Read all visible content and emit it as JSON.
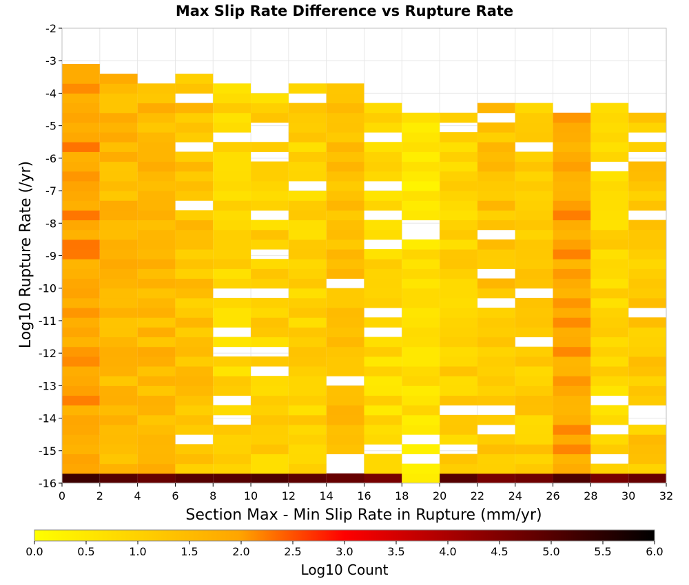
{
  "chart_data": {
    "type": "heatmap",
    "title": "Max Slip Rate Difference vs Rupture Rate",
    "xlabel": "Section Max - Min Slip Rate in Rupture (mm/yr)",
    "ylabel": "Log10 Rupture Rate (/yr)",
    "xlim": [
      0,
      32
    ],
    "ylim": [
      -16,
      -2
    ],
    "x_ticks": [
      "0",
      "2",
      "4",
      "6",
      "8",
      "10",
      "12",
      "14",
      "16",
      "18",
      "20",
      "22",
      "24",
      "26",
      "28",
      "30",
      "32"
    ],
    "y_ticks": [
      "-2",
      "-3",
      "-4",
      "-5",
      "-6",
      "-7",
      "-8",
      "-9",
      "-10",
      "-11",
      "-12",
      "-13",
      "-14",
      "-15",
      "-16"
    ],
    "x_bin_edges": [
      0,
      2,
      4,
      6,
      8,
      10,
      12,
      14,
      16,
      18,
      20,
      22,
      24,
      26,
      28,
      30,
      32
    ],
    "y_bin_width": 0.3,
    "y_bin_start": -16,
    "grid": true,
    "colorbar": {
      "label": "Log10 Count",
      "range": [
        0,
        6
      ],
      "ticks": [
        "0.0",
        "0.5",
        "1.0",
        "1.5",
        "2.0",
        "2.5",
        "3.0",
        "3.5",
        "4.0",
        "4.5",
        "5.0",
        "5.5",
        "6.0"
      ],
      "colors": [
        "#ffff00",
        "#ffa500",
        "#ff0000",
        "#000000"
      ],
      "stops": [
        0,
        0.33,
        0.5,
        1.0
      ]
    },
    "columns": [
      {
        "x_range": [
          0,
          2
        ],
        "y_top": -3.0,
        "level": 1.95,
        "bottom_row_level": 5.3
      },
      {
        "x_range": [
          2,
          4
        ],
        "y_top": -3.3,
        "level": 1.55,
        "bottom_row_level": 5.0
      },
      {
        "x_range": [
          4,
          6
        ],
        "y_top": -3.6,
        "level": 1.55,
        "bottom_row_level": 4.8
      },
      {
        "x_range": [
          6,
          8
        ],
        "y_top": -3.3,
        "level": 1.3,
        "bottom_row_level": 5.0
      },
      {
        "x_range": [
          8,
          10
        ],
        "y_top": -3.6,
        "level": 0.9,
        "bottom_row_level": 5.0
      },
      {
        "x_range": [
          10,
          12
        ],
        "y_top": -3.9,
        "level": 1.0,
        "bottom_row_level": 5.1
      },
      {
        "x_range": [
          12,
          14
        ],
        "y_top": -3.6,
        "level": 1.0,
        "bottom_row_level": 4.9
      },
      {
        "x_range": [
          14,
          16
        ],
        "y_top": -3.6,
        "level": 1.4,
        "bottom_row_level": 4.8
      },
      {
        "x_range": [
          16,
          18
        ],
        "y_top": -4.2,
        "level": 0.8,
        "bottom_row_level": 4.6
      },
      {
        "x_range": [
          18,
          20
        ],
        "y_top": -4.2,
        "level": 0.6,
        "bottom_row_level": 0.4
      },
      {
        "x_range": [
          20,
          22
        ],
        "y_top": -3.9,
        "level": 1.0,
        "bottom_row_level": 5.0
      },
      {
        "x_range": [
          22,
          24
        ],
        "y_top": -4.2,
        "level": 1.3,
        "bottom_row_level": 4.6
      },
      {
        "x_range": [
          24,
          26
        ],
        "y_top": -4.2,
        "level": 1.1,
        "bottom_row_level": 4.7
      },
      {
        "x_range": [
          26,
          28
        ],
        "y_top": -4.5,
        "level": 1.9,
        "bottom_row_level": 5.1
      },
      {
        "x_range": [
          28,
          30
        ],
        "y_top": -4.2,
        "level": 0.9,
        "bottom_row_level": 4.6
      },
      {
        "x_range": [
          30,
          32
        ],
        "y_top": -4.5,
        "level": 1.2,
        "bottom_row_level": 4.8
      }
    ]
  }
}
